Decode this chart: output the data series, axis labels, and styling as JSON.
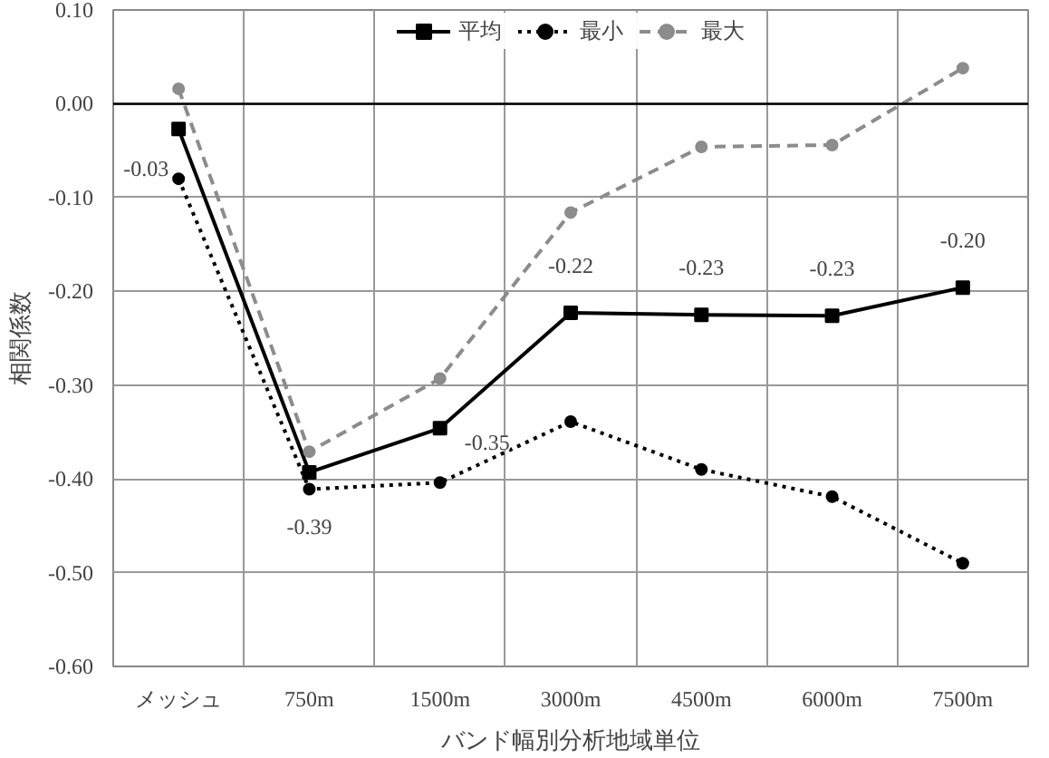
{
  "chart_data": {
    "type": "line",
    "xlabel": "バンド幅別分析地域単位",
    "ylabel": "相関係数",
    "categories": [
      "メッシュ",
      "750m",
      "1500m",
      "3000m",
      "4500m",
      "6000m",
      "7500m"
    ],
    "series": [
      {
        "name": "平均",
        "color": "#000000",
        "marker": "square",
        "line_style": "solid",
        "values": [
          -0.027,
          -0.393,
          -0.346,
          -0.223,
          -0.225,
          -0.226,
          -0.196
        ],
        "value_labels": [
          "-0.03",
          "-0.39",
          "-0.35",
          "-0.22",
          "-0.23",
          "-0.23",
          "-0.20"
        ]
      },
      {
        "name": "最小",
        "color": "#000000",
        "marker": "circle",
        "line_style": "dotted",
        "values": [
          -0.08,
          -0.411,
          -0.404,
          -0.339,
          -0.39,
          -0.419,
          -0.49
        ]
      },
      {
        "name": "最大",
        "color": "#8c8c8c",
        "marker": "circle",
        "line_style": "dashed",
        "values": [
          0.016,
          -0.371,
          -0.293,
          -0.116,
          -0.046,
          -0.044,
          0.038
        ]
      }
    ],
    "ylim": [
      -0.6,
      0.1
    ],
    "yticks": [
      {
        "value": -0.6,
        "label": "-0.60"
      },
      {
        "value": -0.5,
        "label": "-0.50"
      },
      {
        "value": -0.4,
        "label": "-0.40"
      },
      {
        "value": -0.3,
        "label": "-0.30"
      },
      {
        "value": -0.2,
        "label": "-0.20"
      },
      {
        "value": -0.1,
        "label": "-0.10"
      },
      {
        "value": 0,
        "label": "0.00"
      },
      {
        "value": 0.1,
        "label": "0.10"
      }
    ],
    "ref_lines": [
      {
        "axis": "y",
        "value": 0,
        "color": "#000000"
      }
    ],
    "grid": true,
    "legend": "top"
  }
}
